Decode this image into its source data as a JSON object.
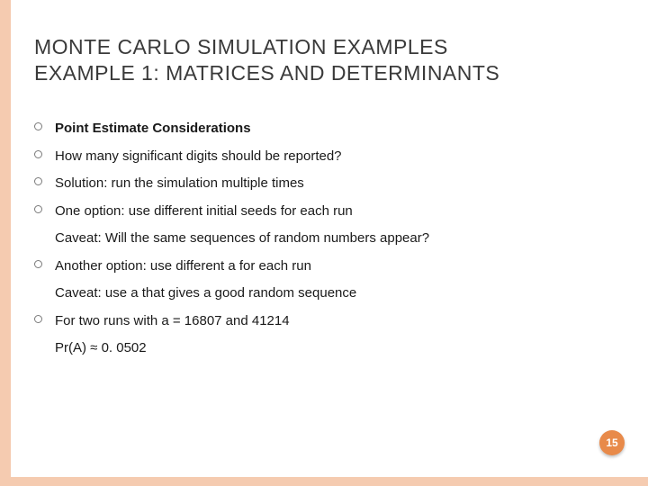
{
  "stripe_color": "#f5cbb0",
  "badge_color": "#e88a4a",
  "title": {
    "line1": "MONTE CARLO SIMULATION EXAMPLES",
    "line2": "EXAMPLE 1: MATRICES AND DETERMINANTS"
  },
  "bullets": [
    {
      "text": "Point Estimate Considerations",
      "bold": true
    },
    {
      "text": "How many significant digits should be reported?",
      "bold": false
    },
    {
      "text": "Solution: run the simulation multiple times",
      "bold": false
    },
    {
      "text": "One option: use different initial seeds for each run",
      "bold": false,
      "sub": "Caveat: Will the same sequences of random numbers appear?"
    },
    {
      "text": "Another option: use different a for each run",
      "bold": false,
      "sub": "Caveat: use a that gives a good random sequence"
    },
    {
      "text": "For two runs with a = 16807 and 41214",
      "bold": false,
      "sub": "Pr(A) ≈ 0. 0502"
    }
  ],
  "page_number": "15"
}
